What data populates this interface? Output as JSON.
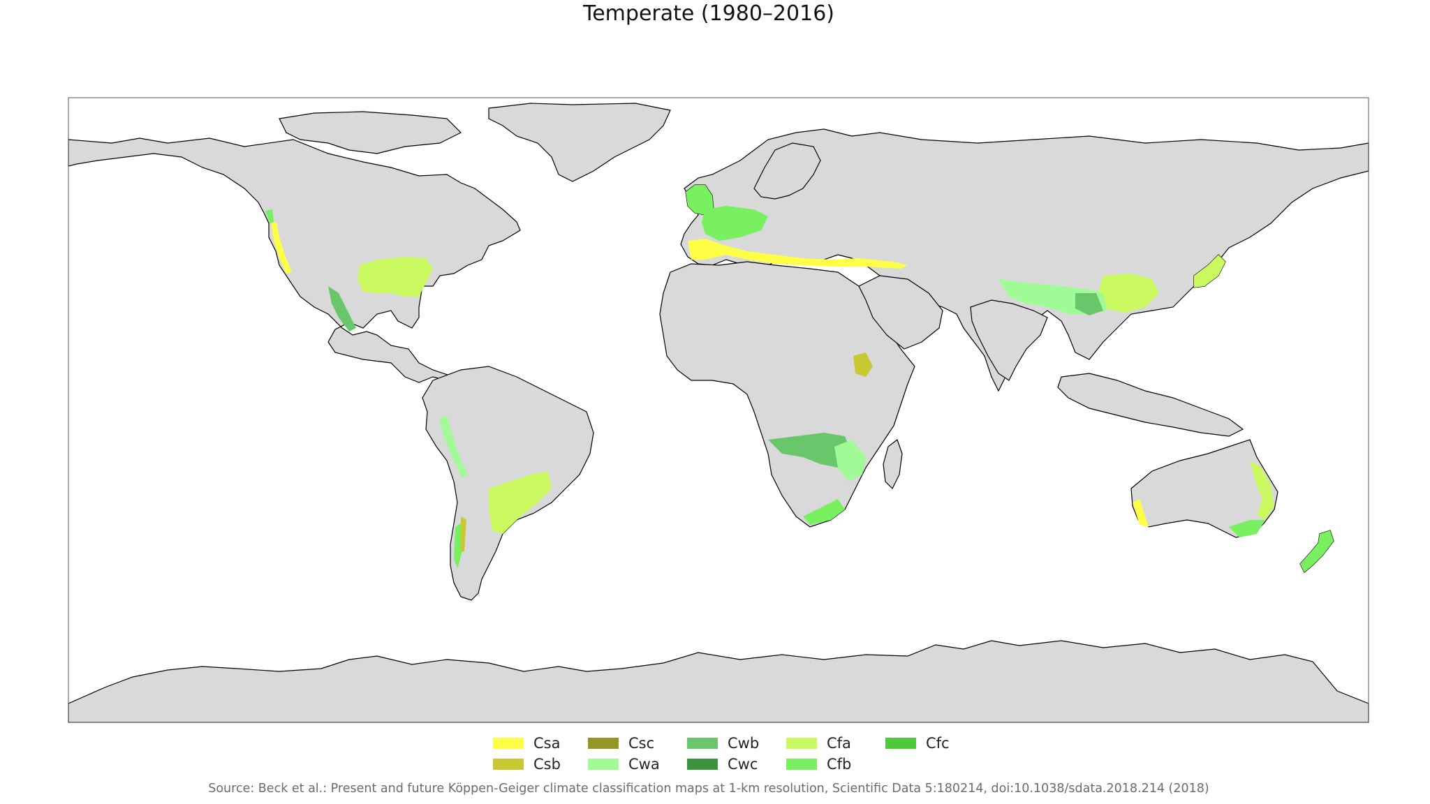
{
  "title": "Temperate (1980–2016)",
  "source": "Source: Beck et al.: Present and future Köppen-Geiger climate classification maps at 1-km resolution, Scientific Data 5:180214, doi:10.1038/sdata.2018.214 (2018)",
  "colors": {
    "land": "#d9d9d9",
    "ocean": "#ffffff",
    "border": "#000000"
  },
  "legend": [
    {
      "code": "Csa",
      "color": "#fefe46"
    },
    {
      "code": "Csb",
      "color": "#c8c832"
    },
    {
      "code": "Csc",
      "color": "#969628"
    },
    {
      "code": "Cwa",
      "color": "#a0fa96"
    },
    {
      "code": "Cwb",
      "color": "#6ac66a"
    },
    {
      "code": "Cwc",
      "color": "#3c943c"
    },
    {
      "code": "Cfa",
      "color": "#cafa60"
    },
    {
      "code": "Cfb",
      "color": "#78f060"
    },
    {
      "code": "Cfc",
      "color": "#50c83c"
    }
  ]
}
